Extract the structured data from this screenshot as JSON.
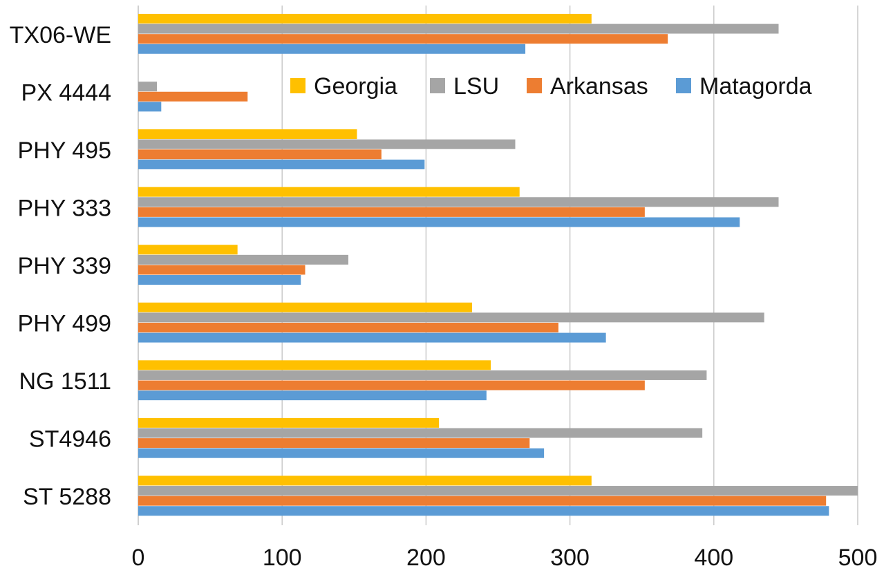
{
  "chart_data": {
    "type": "bar",
    "orientation": "horizontal",
    "categories": [
      "TX06-WE",
      "PX 4444",
      "PHY 495",
      "PHY 333",
      "PHY 339",
      "PHY 499",
      "NG 1511",
      "ST4946",
      "ST 5288"
    ],
    "series": [
      {
        "name": "Georgia",
        "color": "#FFC000",
        "values": [
          315,
          0,
          152,
          265,
          69,
          232,
          245,
          209,
          315
        ]
      },
      {
        "name": "LSU",
        "color": "#A5A5A5",
        "values": [
          445,
          13,
          262,
          445,
          146,
          435,
          395,
          392,
          500
        ]
      },
      {
        "name": "Arkansas",
        "color": "#ED7D31",
        "values": [
          368,
          76,
          169,
          352,
          116,
          292,
          352,
          272,
          478
        ]
      },
      {
        "name": "Matagorda",
        "color": "#5B9BD5",
        "values": [
          269,
          16,
          199,
          418,
          113,
          325,
          242,
          282,
          480
        ]
      }
    ],
    "xlim": [
      0,
      500
    ],
    "xticks": [
      0,
      100,
      200,
      300,
      400,
      500
    ],
    "grid": true,
    "legend_position": "top-right"
  }
}
